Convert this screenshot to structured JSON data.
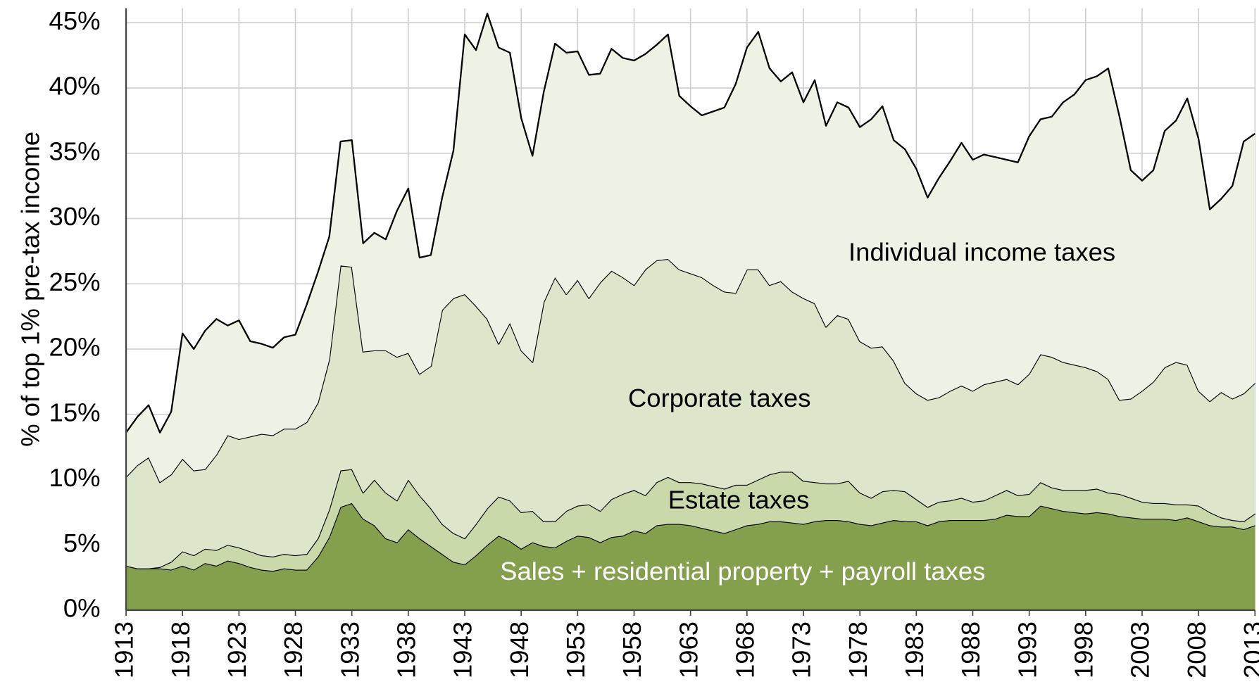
{
  "chart_data": {
    "type": "stacked_area",
    "ylabel": "% of top 1% pre-tax income",
    "x": [
      1913,
      1914,
      1915,
      1916,
      1917,
      1918,
      1919,
      1920,
      1921,
      1922,
      1923,
      1924,
      1925,
      1926,
      1927,
      1928,
      1929,
      1930,
      1931,
      1932,
      1933,
      1934,
      1935,
      1936,
      1937,
      1938,
      1939,
      1940,
      1941,
      1942,
      1943,
      1944,
      1945,
      1946,
      1947,
      1948,
      1949,
      1950,
      1951,
      1952,
      1953,
      1954,
      1955,
      1956,
      1957,
      1958,
      1959,
      1960,
      1961,
      1962,
      1963,
      1964,
      1965,
      1966,
      1967,
      1968,
      1969,
      1970,
      1971,
      1972,
      1973,
      1974,
      1975,
      1976,
      1977,
      1978,
      1979,
      1980,
      1981,
      1982,
      1983,
      1984,
      1985,
      1986,
      1987,
      1988,
      1989,
      1990,
      1991,
      1992,
      1993,
      1994,
      1995,
      1996,
      1997,
      1998,
      1999,
      2000,
      2001,
      2002,
      2003,
      2004,
      2005,
      2006,
      2007,
      2008,
      2009,
      2010,
      2011,
      2012,
      2013
    ],
    "series": [
      {
        "name": "Sales + residential property + payroll taxes",
        "color": "#84a04c",
        "values": [
          3.4,
          3.2,
          3.2,
          3.2,
          3.1,
          3.4,
          3.1,
          3.6,
          3.4,
          3.8,
          3.6,
          3.3,
          3.1,
          3.0,
          3.2,
          3.1,
          3.1,
          4.1,
          5.6,
          7.9,
          8.2,
          7.0,
          6.5,
          5.5,
          5.2,
          6.2,
          5.5,
          4.9,
          4.3,
          3.7,
          3.5,
          4.2,
          5.0,
          5.7,
          5.3,
          4.7,
          5.2,
          4.9,
          4.8,
          5.3,
          5.7,
          5.6,
          5.2,
          5.6,
          5.7,
          6.1,
          5.9,
          6.5,
          6.6,
          6.6,
          6.5,
          6.3,
          6.1,
          5.9,
          6.2,
          6.5,
          6.6,
          6.8,
          6.8,
          6.7,
          6.6,
          6.8,
          6.9,
          6.9,
          6.8,
          6.6,
          6.5,
          6.7,
          6.9,
          6.8,
          6.8,
          6.5,
          6.8,
          6.9,
          6.9,
          6.9,
          6.9,
          7.0,
          7.3,
          7.2,
          7.2,
          8.0,
          7.8,
          7.6,
          7.5,
          7.4,
          7.5,
          7.4,
          7.2,
          7.1,
          7.0,
          7.0,
          7.0,
          6.9,
          7.1,
          6.8,
          6.5,
          6.4,
          6.4,
          6.2,
          6.5
        ]
      },
      {
        "name": "Estate taxes",
        "color": "#c9d9a9",
        "values": [
          0.0,
          0.0,
          0.0,
          0.1,
          0.6,
          1.1,
          1.1,
          1.1,
          1.2,
          1.2,
          1.2,
          1.2,
          1.1,
          1.1,
          1.1,
          1.1,
          1.2,
          1.4,
          2.1,
          2.8,
          2.6,
          2.0,
          3.5,
          3.5,
          3.2,
          3.8,
          3.3,
          2.9,
          2.3,
          2.2,
          2.0,
          2.4,
          2.8,
          3.0,
          3.1,
          2.8,
          2.4,
          1.9,
          2.0,
          2.3,
          2.3,
          2.5,
          2.4,
          2.9,
          3.2,
          3.1,
          2.9,
          3.3,
          3.6,
          3.2,
          3.3,
          3.4,
          3.4,
          3.4,
          3.4,
          3.1,
          3.4,
          3.6,
          3.8,
          3.9,
          3.3,
          3.0,
          2.8,
          2.8,
          3.1,
          2.4,
          2.1,
          2.4,
          2.3,
          2.3,
          1.7,
          1.4,
          1.5,
          1.5,
          1.7,
          1.4,
          1.5,
          1.8,
          1.9,
          1.6,
          1.7,
          1.8,
          1.6,
          1.6,
          1.7,
          1.8,
          1.8,
          1.6,
          1.7,
          1.5,
          1.3,
          1.2,
          1.2,
          1.2,
          1.0,
          1.2,
          1.0,
          0.7,
          0.5,
          0.6,
          0.9
        ]
      },
      {
        "name": "Corporate taxes",
        "color": "#dde6ca",
        "values": [
          6.8,
          7.9,
          8.5,
          6.5,
          6.7,
          7.1,
          6.5,
          6.1,
          7.3,
          8.4,
          8.3,
          8.8,
          9.3,
          9.3,
          9.6,
          9.7,
          10.1,
          10.4,
          11.5,
          15.7,
          15.5,
          10.8,
          9.9,
          10.9,
          11.0,
          9.7,
          9.3,
          10.9,
          16.4,
          18.0,
          18.7,
          16.7,
          14.5,
          11.7,
          13.6,
          12.4,
          11.4,
          16.8,
          18.7,
          16.6,
          17.3,
          15.8,
          17.5,
          17.5,
          16.6,
          15.7,
          17.3,
          17.0,
          16.7,
          16.3,
          16.0,
          15.8,
          15.4,
          15.1,
          14.7,
          16.5,
          16.1,
          14.5,
          14.6,
          13.8,
          14.0,
          13.7,
          12.0,
          12.9,
          12.4,
          11.6,
          11.5,
          11.1,
          9.9,
          8.3,
          8.1,
          8.2,
          8.0,
          8.4,
          8.6,
          8.5,
          8.9,
          8.7,
          8.5,
          8.5,
          9.2,
          9.8,
          10.0,
          9.8,
          9.6,
          9.4,
          9.0,
          8.7,
          7.2,
          7.6,
          8.5,
          9.3,
          10.4,
          10.9,
          10.7,
          8.8,
          8.5,
          9.6,
          9.3,
          9.8,
          10.0
        ]
      },
      {
        "name": "Individual income taxes",
        "color": "#eef2e4",
        "values": [
          3.4,
          3.7,
          4.0,
          3.8,
          4.8,
          9.6,
          9.3,
          10.6,
          10.4,
          8.4,
          9.1,
          7.3,
          6.9,
          6.7,
          7.0,
          7.2,
          9.0,
          10.0,
          9.4,
          9.5,
          9.7,
          8.3,
          9.0,
          8.5,
          11.2,
          12.6,
          8.9,
          8.5,
          8.6,
          11.3,
          19.9,
          19.6,
          23.4,
          22.7,
          20.7,
          17.8,
          15.8,
          16.1,
          17.9,
          18.5,
          17.5,
          17.1,
          16.0,
          17.0,
          16.8,
          17.2,
          16.5,
          16.5,
          17.2,
          13.3,
          12.8,
          12.4,
          13.3,
          14.1,
          16.0,
          17.0,
          18.2,
          16.6,
          15.3,
          16.8,
          15.0,
          17.1,
          15.4,
          16.3,
          16.2,
          16.4,
          17.5,
          18.4,
          16.9,
          17.9,
          17.2,
          15.5,
          16.8,
          17.6,
          18.6,
          17.7,
          17.6,
          17.2,
          16.8,
          17.0,
          18.2,
          18.0,
          18.4,
          19.9,
          20.7,
          22.0,
          22.6,
          23.8,
          21.7,
          17.5,
          16.1,
          16.2,
          18.1,
          18.5,
          20.4,
          19.3,
          14.7,
          14.8,
          16.3,
          19.3,
          19.1
        ]
      }
    ],
    "xlim": [
      1913,
      2013
    ],
    "xticks": [
      1913,
      1918,
      1923,
      1928,
      1933,
      1938,
      1943,
      1948,
      1953,
      1958,
      1963,
      1968,
      1973,
      1978,
      1983,
      1988,
      1993,
      1998,
      2003,
      2008,
      2013
    ],
    "ylim": [
      0,
      45
    ],
    "yticks": [
      {
        "value": 0,
        "label": "0%"
      },
      {
        "value": 5,
        "label": "5%"
      },
      {
        "value": 10,
        "label": "10%"
      },
      {
        "value": 15,
        "label": "15%"
      },
      {
        "value": 20,
        "label": "20%"
      },
      {
        "value": 25,
        "label": "25%"
      },
      {
        "value": 30,
        "label": "30%"
      },
      {
        "value": 35,
        "label": "35%"
      },
      {
        "value": 40,
        "label": "40%"
      },
      {
        "value": 45,
        "label": "45%"
      }
    ],
    "grid": true,
    "line_color": "#000000"
  }
}
